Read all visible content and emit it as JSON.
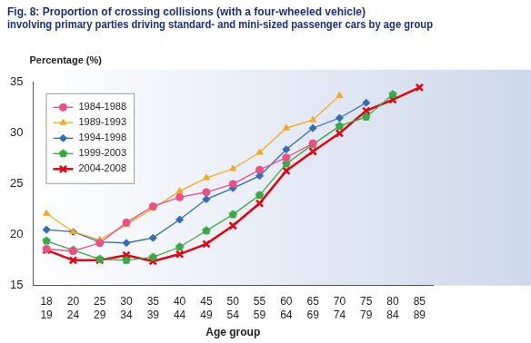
{
  "chart_data": {
    "type": "line",
    "title": [
      "Fig. 8: Proportion of crossing collisions (with a four-wheeled vehicle)",
      "involving primary parties driving standard- and mini-sized passenger cars by age group"
    ],
    "y_label": "Percentage (%)",
    "x_label": "Age group",
    "categories": [
      [
        "18",
        "19"
      ],
      [
        "20",
        "24"
      ],
      [
        "25",
        "29"
      ],
      [
        "30",
        "34"
      ],
      [
        "35",
        "39"
      ],
      [
        "40",
        "44"
      ],
      [
        "45",
        "49"
      ],
      [
        "50",
        "54"
      ],
      [
        "55",
        "59"
      ],
      [
        "60",
        "64"
      ],
      [
        "65",
        "69"
      ],
      [
        "70",
        "74"
      ],
      [
        "75",
        "79"
      ],
      [
        "80",
        "84"
      ],
      [
        "85",
        "89"
      ]
    ],
    "series": [
      {
        "name": "1984-1988",
        "color": "#ec4f86",
        "marker": "circle",
        "line_style": "solid",
        "values": [
          18.6,
          18.4,
          19.2,
          21.2,
          22.8,
          23.7,
          24.2,
          25.0,
          26.4,
          27.6,
          29.0,
          null,
          null,
          null,
          null
        ]
      },
      {
        "name": "1989-1993",
        "color": "#f7a822",
        "marker": "triangle",
        "line_style": "solid",
        "values": [
          22.1,
          20.3,
          19.5,
          21.0,
          22.6,
          24.3,
          25.6,
          26.5,
          28.1,
          30.5,
          31.3,
          33.7,
          null,
          null,
          null
        ]
      },
      {
        "name": "1994-1998",
        "color": "#2f6db5",
        "marker": "diamond",
        "line_style": "solid",
        "values": [
          20.5,
          20.3,
          19.3,
          19.2,
          19.7,
          21.5,
          23.5,
          24.6,
          25.8,
          28.4,
          30.5,
          31.5,
          33.0,
          null,
          null
        ]
      },
      {
        "name": "1999-2003",
        "color": "#3aa845",
        "marker": "pentagon",
        "line_style": "solid",
        "values": [
          19.4,
          18.5,
          17.6,
          17.5,
          17.8,
          18.8,
          20.4,
          22.0,
          23.9,
          27.0,
          28.9,
          30.7,
          31.6,
          33.8,
          null
        ]
      },
      {
        "name": "2004-2008",
        "color": "#e60012",
        "marker": "cross",
        "line_style": "thick",
        "values": [
          18.5,
          17.5,
          17.5,
          18.0,
          17.4,
          18.1,
          19.1,
          20.9,
          23.1,
          26.3,
          28.2,
          30.0,
          32.2,
          33.3,
          34.5
        ]
      }
    ],
    "ylim": [
      15,
      35
    ],
    "yticks": [
      15,
      20,
      25,
      30,
      35
    ],
    "grid": false,
    "legend": "upper left"
  }
}
